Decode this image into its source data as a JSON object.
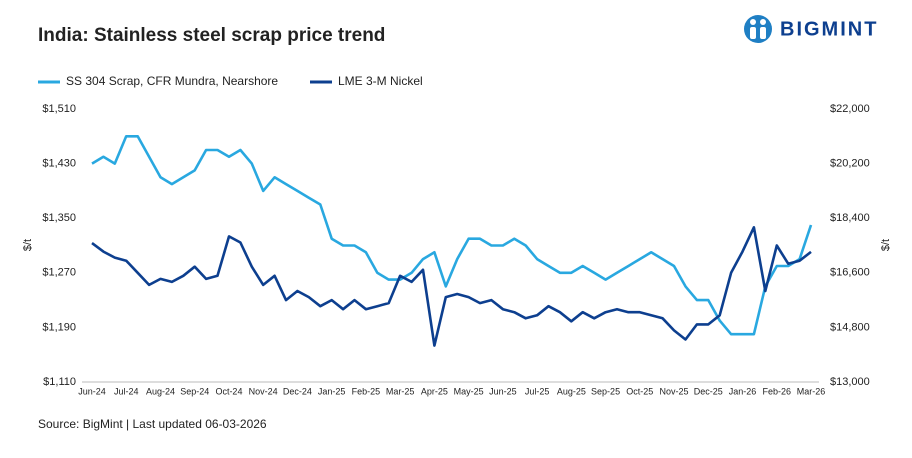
{
  "brand": "BIGMINT",
  "chart_data": {
    "type": "line",
    "title": "India: Stainless steel scrap price trend",
    "ylabel": "$/t",
    "y2label": "$/t",
    "source": "Source: BigMint | Last updated 06-03-2026",
    "categories": [
      "Jun-24",
      null,
      null,
      "Jul-24",
      null,
      null,
      "Aug-24",
      null,
      null,
      "Sep-24",
      null,
      null,
      "Oct-24",
      null,
      null,
      "Nov-24",
      null,
      null,
      "Dec-24",
      null,
      null,
      "Jan-25",
      null,
      null,
      "Feb-25",
      null,
      null,
      "Mar-25",
      null,
      null,
      "Apr-25",
      null,
      null,
      "May-25",
      null,
      null,
      "Jun-25",
      null,
      null,
      "Jul-25",
      null,
      null,
      "Aug-25",
      null,
      null,
      "Sep-25",
      null,
      null,
      "Oct-25",
      null,
      null,
      "Nov-25",
      null,
      null,
      "Dec-25",
      null,
      null,
      "Jan-26",
      null,
      null,
      "Feb-26",
      null,
      null,
      "Mar-26"
    ],
    "series": [
      {
        "name": "SS 304 Scrap, CFR Mundra, Nearshore",
        "color": "#29a8e0",
        "values": [
          1430,
          1440,
          1430,
          1470,
          1470,
          1440,
          1410,
          1400,
          1410,
          1420,
          1450,
          1450,
          1440,
          1450,
          1430,
          1390,
          1410,
          1400,
          1390,
          1380,
          1370,
          1320,
          1310,
          1310,
          1300,
          1270,
          1260,
          1260,
          1270,
          1290,
          1300,
          1250,
          1290,
          1320,
          1320,
          1310,
          1310,
          1320,
          1310,
          1290,
          1280,
          1270,
          1270,
          1280,
          1270,
          1260,
          1270,
          1280,
          1290,
          1300,
          1290,
          1280,
          1250,
          1230,
          1230,
          1200,
          1180,
          1180,
          1180,
          1250,
          1280,
          1280,
          1290,
          1340
        ]
      },
      {
        "name": "LME 3-M Nickel",
        "color": "#0d3f8f",
        "axis": "y2",
        "values": [
          17580,
          17300,
          17100,
          17000,
          16600,
          16200,
          16400,
          16300,
          16500,
          16800,
          16400,
          16500,
          17800,
          17600,
          16800,
          16200,
          16500,
          15700,
          16000,
          15800,
          15500,
          15700,
          15400,
          15700,
          15400,
          15500,
          15600,
          16500,
          16300,
          16700,
          14200,
          15800,
          15900,
          15800,
          15600,
          15700,
          15400,
          15300,
          15100,
          15200,
          15500,
          15300,
          15000,
          15300,
          15100,
          15300,
          15400,
          15300,
          15300,
          15200,
          15100,
          14700,
          14400,
          14900,
          14900,
          15200,
          16600,
          17300,
          18100,
          16000,
          17500,
          16900,
          17000,
          17290
        ]
      }
    ],
    "ylim": [
      1110,
      1510
    ],
    "yticks": [
      {
        "value": 1110,
        "label": "$1,110"
      },
      {
        "value": 1190,
        "label": "$1,190"
      },
      {
        "value": 1270,
        "label": "$1,270"
      },
      {
        "value": 1350,
        "label": "$1,350"
      },
      {
        "value": 1430,
        "label": "$1,430"
      },
      {
        "value": 1510,
        "label": "$1,510"
      }
    ],
    "y2lim": [
      13000,
      22000
    ],
    "y2ticks": [
      {
        "value": 13000,
        "label": "$13,000"
      },
      {
        "value": 14800,
        "label": "$14,800"
      },
      {
        "value": 16600,
        "label": "$16,600"
      },
      {
        "value": 18400,
        "label": "$18,400"
      },
      {
        "value": 20200,
        "label": "$20,200"
      },
      {
        "value": 22000,
        "label": "$22,000"
      }
    ],
    "grid": false
  }
}
